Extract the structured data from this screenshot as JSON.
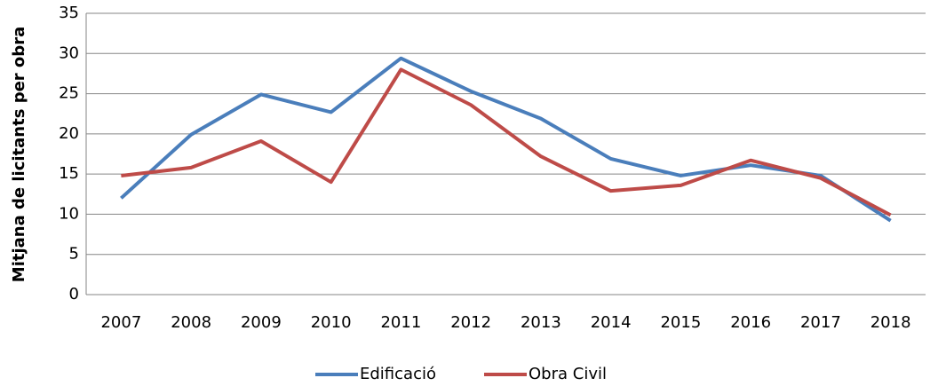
{
  "chart_data": {
    "type": "line",
    "y_label": "Mitjana de licitants per obra",
    "categories": [
      "2007",
      "2008",
      "2009",
      "2010",
      "2011",
      "2012",
      "2013",
      "2014",
      "2015",
      "2016",
      "2017",
      "2018"
    ],
    "series": [
      {
        "name": "Edificació",
        "color": "#4a7ebb",
        "values": [
          12.0,
          19.9,
          24.9,
          22.7,
          29.4,
          25.3,
          21.9,
          16.9,
          14.8,
          16.1,
          14.8,
          9.2
        ]
      },
      {
        "name": "Obra Civil",
        "color": "#be4b48",
        "values": [
          14.8,
          15.8,
          19.1,
          14.0,
          28.0,
          23.6,
          17.2,
          12.9,
          13.6,
          16.7,
          14.5,
          9.9
        ]
      }
    ],
    "ylim": [
      0,
      35
    ],
    "yticks": [
      0,
      5,
      10,
      15,
      20,
      25,
      30,
      35
    ],
    "grid": true,
    "legend": "bottom"
  }
}
